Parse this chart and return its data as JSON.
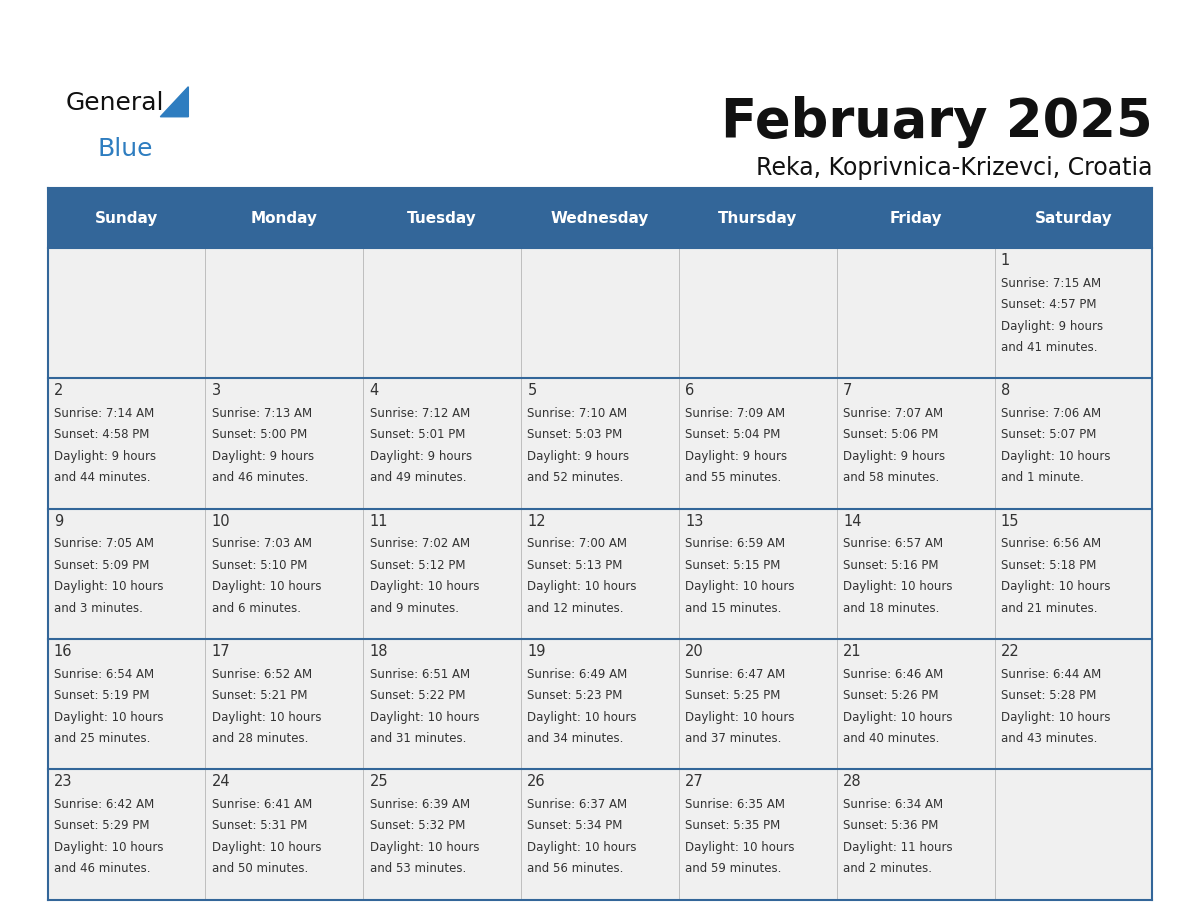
{
  "title": "February 2025",
  "subtitle": "Reka, Koprivnica-Krizevci, Croatia",
  "days_of_week": [
    "Sunday",
    "Monday",
    "Tuesday",
    "Wednesday",
    "Thursday",
    "Friday",
    "Saturday"
  ],
  "header_bg": "#336699",
  "header_text": "#FFFFFF",
  "cell_bg": "#F0F0F0",
  "border_color": "#336699",
  "text_color": "#333333",
  "title_color": "#111111",
  "logo_blue_color": "#2E7DC0",
  "logo_black_color": "#111111",
  "calendar_data": [
    [
      null,
      null,
      null,
      null,
      null,
      null,
      {
        "day": 1,
        "sunrise": "7:15 AM",
        "sunset": "4:57 PM",
        "daylight": "9 hours\nand 41 minutes."
      }
    ],
    [
      {
        "day": 2,
        "sunrise": "7:14 AM",
        "sunset": "4:58 PM",
        "daylight": "9 hours\nand 44 minutes."
      },
      {
        "day": 3,
        "sunrise": "7:13 AM",
        "sunset": "5:00 PM",
        "daylight": "9 hours\nand 46 minutes."
      },
      {
        "day": 4,
        "sunrise": "7:12 AM",
        "sunset": "5:01 PM",
        "daylight": "9 hours\nand 49 minutes."
      },
      {
        "day": 5,
        "sunrise": "7:10 AM",
        "sunset": "5:03 PM",
        "daylight": "9 hours\nand 52 minutes."
      },
      {
        "day": 6,
        "sunrise": "7:09 AM",
        "sunset": "5:04 PM",
        "daylight": "9 hours\nand 55 minutes."
      },
      {
        "day": 7,
        "sunrise": "7:07 AM",
        "sunset": "5:06 PM",
        "daylight": "9 hours\nand 58 minutes."
      },
      {
        "day": 8,
        "sunrise": "7:06 AM",
        "sunset": "5:07 PM",
        "daylight": "10 hours\nand 1 minute."
      }
    ],
    [
      {
        "day": 9,
        "sunrise": "7:05 AM",
        "sunset": "5:09 PM",
        "daylight": "10 hours\nand 3 minutes."
      },
      {
        "day": 10,
        "sunrise": "7:03 AM",
        "sunset": "5:10 PM",
        "daylight": "10 hours\nand 6 minutes."
      },
      {
        "day": 11,
        "sunrise": "7:02 AM",
        "sunset": "5:12 PM",
        "daylight": "10 hours\nand 9 minutes."
      },
      {
        "day": 12,
        "sunrise": "7:00 AM",
        "sunset": "5:13 PM",
        "daylight": "10 hours\nand 12 minutes."
      },
      {
        "day": 13,
        "sunrise": "6:59 AM",
        "sunset": "5:15 PM",
        "daylight": "10 hours\nand 15 minutes."
      },
      {
        "day": 14,
        "sunrise": "6:57 AM",
        "sunset": "5:16 PM",
        "daylight": "10 hours\nand 18 minutes."
      },
      {
        "day": 15,
        "sunrise": "6:56 AM",
        "sunset": "5:18 PM",
        "daylight": "10 hours\nand 21 minutes."
      }
    ],
    [
      {
        "day": 16,
        "sunrise": "6:54 AM",
        "sunset": "5:19 PM",
        "daylight": "10 hours\nand 25 minutes."
      },
      {
        "day": 17,
        "sunrise": "6:52 AM",
        "sunset": "5:21 PM",
        "daylight": "10 hours\nand 28 minutes."
      },
      {
        "day": 18,
        "sunrise": "6:51 AM",
        "sunset": "5:22 PM",
        "daylight": "10 hours\nand 31 minutes."
      },
      {
        "day": 19,
        "sunrise": "6:49 AM",
        "sunset": "5:23 PM",
        "daylight": "10 hours\nand 34 minutes."
      },
      {
        "day": 20,
        "sunrise": "6:47 AM",
        "sunset": "5:25 PM",
        "daylight": "10 hours\nand 37 minutes."
      },
      {
        "day": 21,
        "sunrise": "6:46 AM",
        "sunset": "5:26 PM",
        "daylight": "10 hours\nand 40 minutes."
      },
      {
        "day": 22,
        "sunrise": "6:44 AM",
        "sunset": "5:28 PM",
        "daylight": "10 hours\nand 43 minutes."
      }
    ],
    [
      {
        "day": 23,
        "sunrise": "6:42 AM",
        "sunset": "5:29 PM",
        "daylight": "10 hours\nand 46 minutes."
      },
      {
        "day": 24,
        "sunrise": "6:41 AM",
        "sunset": "5:31 PM",
        "daylight": "10 hours\nand 50 minutes."
      },
      {
        "day": 25,
        "sunrise": "6:39 AM",
        "sunset": "5:32 PM",
        "daylight": "10 hours\nand 53 minutes."
      },
      {
        "day": 26,
        "sunrise": "6:37 AM",
        "sunset": "5:34 PM",
        "daylight": "10 hours\nand 56 minutes."
      },
      {
        "day": 27,
        "sunrise": "6:35 AM",
        "sunset": "5:35 PM",
        "daylight": "10 hours\nand 59 minutes."
      },
      {
        "day": 28,
        "sunrise": "6:34 AM",
        "sunset": "5:36 PM",
        "daylight": "11 hours\nand 2 minutes."
      },
      null
    ]
  ]
}
